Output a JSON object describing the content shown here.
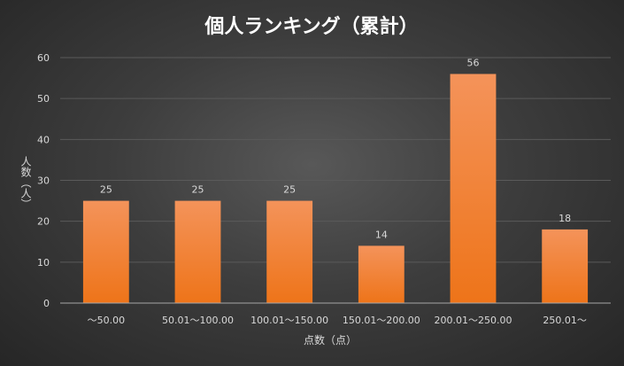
{
  "chart_data": {
    "type": "bar",
    "title": "個人ランキング（累計）",
    "xlabel": "点数（点）",
    "ylabel": "人数（人）",
    "categories": [
      "〜50.00",
      "50.01〜100.00",
      "100.01〜150.00",
      "150.01〜200.00",
      "200.01〜250.00",
      "250.01〜"
    ],
    "values": [
      25,
      25,
      25,
      14,
      56,
      18
    ],
    "ylim": [
      0,
      60
    ],
    "yticks": [
      0,
      10,
      20,
      30,
      40,
      50,
      60
    ],
    "grid": true,
    "data_labels": true,
    "bar_color": "#f07a2a"
  }
}
